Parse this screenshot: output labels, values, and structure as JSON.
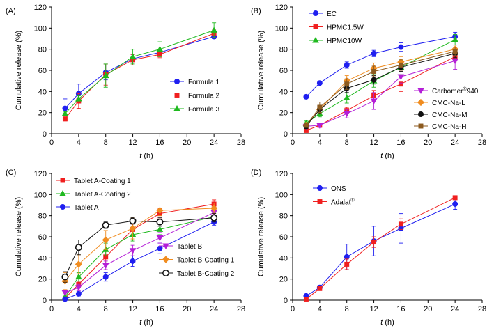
{
  "chart_data": [
    {
      "type": "line",
      "panel_label": "(A)",
      "xlabel_var": "t",
      "xlabel_unit": " (h)",
      "ylabel": "Cumulative release (%)",
      "xlim": [
        0,
        28
      ],
      "ylim": [
        0,
        120
      ],
      "xticks": [
        0,
        4,
        8,
        12,
        16,
        20,
        24,
        28
      ],
      "yticks": [
        0,
        20,
        40,
        60,
        80,
        100,
        120
      ],
      "grid": false,
      "legend_position": "bottom-right",
      "series": [
        {
          "name": "Formula 1",
          "color": "#1f1ff0",
          "marker": "circle-filled",
          "x": [
            2,
            4,
            8,
            12,
            16,
            24
          ],
          "y": [
            24,
            38,
            58,
            71,
            77,
            92
          ],
          "err": [
            9,
            9,
            7,
            4,
            3,
            2
          ]
        },
        {
          "name": "Formula 2",
          "color": "#f01f1f",
          "marker": "square-filled",
          "x": [
            2,
            4,
            8,
            12,
            16,
            24
          ],
          "y": [
            14,
            31,
            56,
            70,
            75,
            95
          ],
          "err": [
            2,
            7,
            10,
            5,
            3,
            4
          ]
        },
        {
          "name": "Formula 3",
          "color": "#1fb91f",
          "marker": "triangle-up-filled",
          "x": [
            2,
            4,
            8,
            12,
            16,
            24
          ],
          "y": [
            19,
            33,
            55,
            73,
            80,
            98
          ],
          "err": [
            2,
            3,
            11,
            7,
            7,
            7
          ]
        }
      ]
    },
    {
      "type": "line",
      "panel_label": "(B)",
      "xlabel_var": "t",
      "xlabel_unit": " (h)",
      "ylabel": "Cumulative release (%)",
      "xlim": [
        0,
        28
      ],
      "ylim": [
        0,
        120
      ],
      "xticks": [
        0,
        4,
        8,
        12,
        16,
        20,
        24,
        28
      ],
      "yticks": [
        0,
        20,
        40,
        60,
        80,
        100,
        120
      ],
      "grid": false,
      "legend_position": "split: top-left and bottom-right",
      "series": [
        {
          "name": "EC",
          "color": "#1f1ff0",
          "marker": "circle-filled",
          "x": [
            2,
            4,
            8,
            12,
            16,
            24
          ],
          "y": [
            35,
            48,
            65,
            76,
            82,
            92
          ],
          "err": [
            0,
            0,
            3,
            3,
            4,
            4
          ]
        },
        {
          "name": "HPMC1.5W",
          "color": "#f01f1f",
          "marker": "square-filled",
          "x": [
            2,
            4,
            8,
            12,
            16,
            24
          ],
          "y": [
            3,
            8,
            22,
            36,
            47,
            73
          ],
          "err": [
            1,
            2,
            3,
            5,
            7,
            6
          ]
        },
        {
          "name": "HPMC10W",
          "color": "#1fb91f",
          "marker": "triangle-up-filled",
          "x": [
            2,
            4,
            8,
            12,
            16,
            24
          ],
          "y": [
            10,
            19,
            34,
            50,
            63,
            89
          ],
          "err": [
            2,
            3,
            5,
            6,
            7,
            5
          ]
        },
        {
          "name": "Carbomer®940",
          "name_main": "Carbomer",
          "name_sup": "®",
          "name_tail": "940",
          "color": "#b41fd7",
          "marker": "triangle-down-filled",
          "x": [
            2,
            4,
            8,
            12,
            16,
            24
          ],
          "y": [
            7,
            8,
            19,
            31,
            54,
            69
          ],
          "err": [
            2,
            2,
            4,
            8,
            6,
            8
          ]
        },
        {
          "name": "CMC-Na-L",
          "color": "#f08c1f",
          "marker": "diamond-filled",
          "x": [
            2,
            4,
            8,
            12,
            16,
            24
          ],
          "y": [
            8,
            23,
            50,
            62,
            68,
            80
          ],
          "err": [
            2,
            4,
            5,
            5,
            5,
            4
          ]
        },
        {
          "name": "CMC-Na-M",
          "color": "#111111",
          "marker": "circle-filled",
          "x": [
            2,
            4,
            8,
            12,
            16,
            24
          ],
          "y": [
            7,
            23,
            43,
            51,
            63,
            76
          ],
          "err": [
            2,
            4,
            4,
            4,
            4,
            4
          ]
        },
        {
          "name": "CMC-Na-H",
          "color": "#8c5a1f",
          "marker": "square-filled",
          "x": [
            2,
            4,
            8,
            12,
            16,
            24
          ],
          "y": [
            8,
            25,
            47,
            59,
            65,
            78
          ],
          "err": [
            2,
            5,
            5,
            5,
            5,
            4
          ]
        }
      ]
    },
    {
      "type": "line",
      "panel_label": "(C)",
      "xlabel_var": "t",
      "xlabel_unit": " (h)",
      "ylabel": "Cumulative release (%)",
      "xlim": [
        0,
        28
      ],
      "ylim": [
        0,
        120
      ],
      "xticks": [
        0,
        4,
        8,
        12,
        16,
        20,
        24,
        28
      ],
      "yticks": [
        0,
        20,
        40,
        60,
        80,
        100,
        120
      ],
      "grid": false,
      "legend_position": "split: top-left and bottom-right",
      "series": [
        {
          "name": "Tablet A-Coating 1",
          "color": "#f01f1f",
          "marker": "square-filled",
          "x": [
            2,
            4,
            8,
            12,
            16,
            24
          ],
          "y": [
            2,
            15,
            41,
            67,
            82,
            91
          ],
          "err": [
            1,
            3,
            6,
            5,
            5,
            4
          ]
        },
        {
          "name": "Tablet A-Coating 2",
          "color": "#1fb91f",
          "marker": "triangle-up-filled",
          "x": [
            2,
            4,
            8,
            12,
            16,
            24
          ],
          "y": [
            3,
            22,
            48,
            62,
            67,
            79
          ],
          "err": [
            1,
            4,
            6,
            6,
            5,
            4
          ]
        },
        {
          "name": "Tablet A",
          "color": "#1f1ff0",
          "marker": "circle-filled",
          "x": [
            2,
            4,
            8,
            12,
            16,
            24
          ],
          "y": [
            1,
            6,
            22,
            37,
            49,
            74
          ],
          "err": [
            1,
            2,
            4,
            5,
            5,
            3
          ]
        },
        {
          "name": "Tablet B",
          "color": "#b41fd7",
          "marker": "triangle-down-filled",
          "x": [
            2,
            4,
            8,
            12,
            16,
            24
          ],
          "y": [
            7,
            12,
            33,
            47,
            59,
            83
          ],
          "err": [
            2,
            3,
            4,
            5,
            5,
            5
          ]
        },
        {
          "name": "Tablet B-Coating 1",
          "color": "#f08c1f",
          "marker": "diamond-filled",
          "x": [
            2,
            4,
            8,
            12,
            16,
            24
          ],
          "y": [
            18,
            34,
            57,
            68,
            85,
            87
          ],
          "err": [
            8,
            9,
            9,
            10,
            5,
            5
          ]
        },
        {
          "name": "Tablet B-Coating 2",
          "color": "#111111",
          "marker": "circle-open",
          "x": [
            2,
            4,
            8,
            12,
            16,
            24
          ],
          "y": [
            22,
            50,
            71,
            75,
            74,
            78
          ],
          "err": [
            5,
            7,
            3,
            3,
            4,
            4
          ]
        }
      ]
    },
    {
      "type": "line",
      "panel_label": "(D)",
      "xlabel_var": "t",
      "xlabel_unit": " (h)",
      "ylabel": "Cumulative release (%)",
      "xlim": [
        0,
        28
      ],
      "ylim": [
        0,
        120
      ],
      "xticks": [
        0,
        4,
        8,
        12,
        16,
        20,
        24,
        28
      ],
      "yticks": [
        0,
        20,
        40,
        60,
        80,
        100,
        120
      ],
      "grid": false,
      "legend_position": "top-left",
      "series": [
        {
          "name": "ONS",
          "color": "#1f1ff0",
          "marker": "circle-filled",
          "x": [
            2,
            4,
            8,
            12,
            16,
            24
          ],
          "y": [
            4,
            12,
            41,
            56,
            68,
            91
          ],
          "err": [
            1,
            2,
            12,
            14,
            14,
            5
          ]
        },
        {
          "name": "Adalat®",
          "name_main": "Adalat",
          "name_sup": "®",
          "name_tail": "",
          "color": "#f01f1f",
          "marker": "square-filled",
          "x": [
            2,
            4,
            8,
            12,
            16,
            24
          ],
          "y": [
            1,
            11,
            34,
            55,
            72,
            97
          ],
          "err": [
            1,
            1,
            5,
            5,
            5,
            1
          ]
        }
      ]
    }
  ]
}
